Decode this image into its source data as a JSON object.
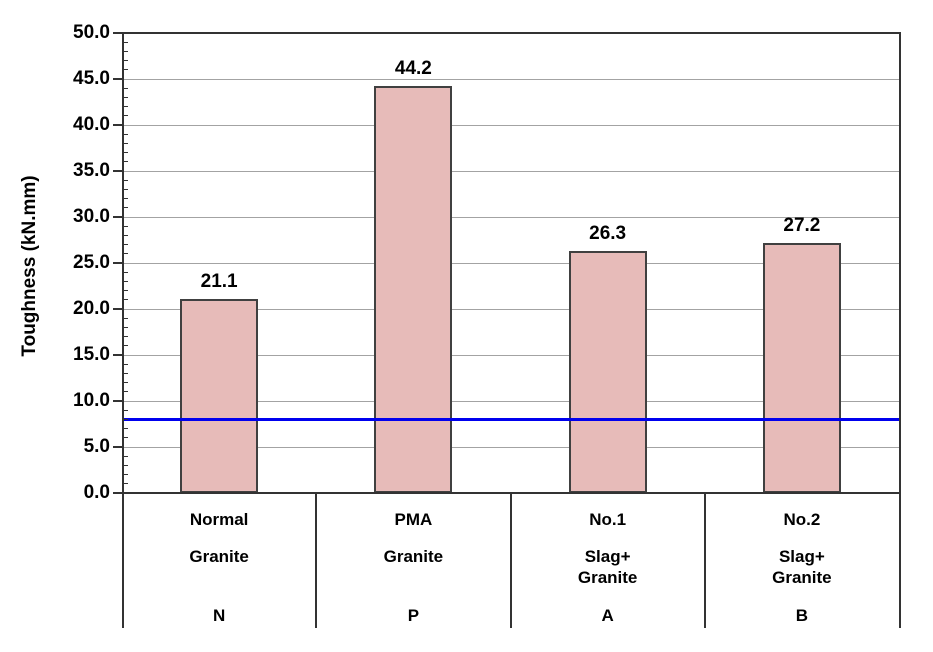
{
  "chart_data": {
    "type": "bar",
    "title": "",
    "xlabel": "",
    "ylabel": "Toughness (kN.mm)",
    "ylim": [
      0.0,
      50.0
    ],
    "ytick_interval": 5.0,
    "ytick_labels": [
      "0.0",
      "5.0",
      "10.0",
      "15.0",
      "20.0",
      "25.0",
      "30.0",
      "35.0",
      "40.0",
      "45.0",
      "50.0"
    ],
    "minor_tick_interval": 1.0,
    "grid": true,
    "legend_position": "none",
    "categories": [
      {
        "name": "Normal",
        "material": [
          "Granite"
        ],
        "code": "N"
      },
      {
        "name": "PMA",
        "material": [
          "Granite"
        ],
        "code": "P"
      },
      {
        "name": "No.1",
        "material": [
          "Slag+",
          "Granite"
        ],
        "code": "A"
      },
      {
        "name": "No.2",
        "material": [
          "Slag+",
          "Granite"
        ],
        "code": "B"
      }
    ],
    "values": [
      21.1,
      44.2,
      26.3,
      27.2
    ],
    "value_labels": [
      "21.1",
      "44.2",
      "26.3",
      "27.2"
    ],
    "reference_line": {
      "value": 8.0
    },
    "colors": {
      "bar_fill": "#E7BBB9",
      "bar_border": "#404040",
      "gridline": "#A3A3A3",
      "axis": "#333333",
      "reference_line": "#0000EE",
      "text": "#000000",
      "background": "#FFFFFF"
    }
  }
}
